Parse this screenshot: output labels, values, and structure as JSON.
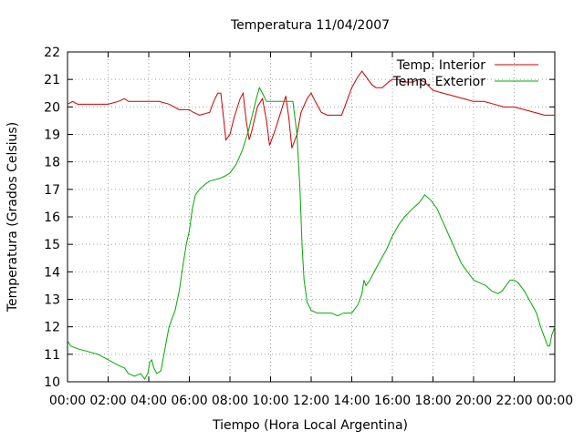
{
  "chart_data": {
    "type": "line",
    "title": "Temperatura 11/04/2007",
    "xlabel": "Tiempo (Hora Local Argentina)",
    "ylabel": "Temperatura (Grados Celsius)",
    "xlim": [
      0,
      24
    ],
    "ylim": [
      10,
      22
    ],
    "x_unit": "hours",
    "x_tick_labels": [
      "00:00",
      "02:00",
      "04:00",
      "06:00",
      "08:00",
      "10:00",
      "12:00",
      "14:00",
      "16:00",
      "18:00",
      "20:00",
      "22:00",
      "00:00"
    ],
    "y_ticks": [
      10,
      11,
      12,
      13,
      14,
      15,
      16,
      17,
      18,
      19,
      20,
      21,
      22
    ],
    "grid": true,
    "legend_position": "top-right",
    "series": [
      {
        "name": "Temp. Interior",
        "color": "#cc0000",
        "points": [
          [
            0.0,
            20.1
          ],
          [
            0.25,
            20.2
          ],
          [
            0.5,
            20.1
          ],
          [
            1.0,
            20.1
          ],
          [
            1.5,
            20.1
          ],
          [
            2.0,
            20.1
          ],
          [
            2.5,
            20.2
          ],
          [
            2.8,
            20.3
          ],
          [
            3.0,
            20.2
          ],
          [
            3.5,
            20.2
          ],
          [
            4.0,
            20.2
          ],
          [
            4.5,
            20.2
          ],
          [
            5.0,
            20.1
          ],
          [
            5.5,
            19.9
          ],
          [
            6.0,
            19.9
          ],
          [
            6.2,
            19.8
          ],
          [
            6.5,
            19.7
          ],
          [
            7.0,
            19.8
          ],
          [
            7.2,
            20.2
          ],
          [
            7.4,
            20.5
          ],
          [
            7.55,
            20.5
          ],
          [
            7.7,
            19.5
          ],
          [
            7.8,
            18.8
          ],
          [
            8.0,
            19.0
          ],
          [
            8.2,
            19.6
          ],
          [
            8.5,
            20.3
          ],
          [
            8.65,
            20.5
          ],
          [
            8.8,
            19.5
          ],
          [
            8.95,
            18.8
          ],
          [
            9.1,
            19.2
          ],
          [
            9.35,
            20.0
          ],
          [
            9.6,
            20.3
          ],
          [
            9.8,
            19.5
          ],
          [
            9.95,
            18.6
          ],
          [
            10.2,
            19.1
          ],
          [
            10.5,
            19.8
          ],
          [
            10.75,
            20.4
          ],
          [
            10.9,
            19.6
          ],
          [
            11.05,
            18.5
          ],
          [
            11.3,
            19.0
          ],
          [
            11.5,
            19.8
          ],
          [
            11.8,
            20.3
          ],
          [
            12.0,
            20.5
          ],
          [
            12.2,
            20.2
          ],
          [
            12.5,
            19.8
          ],
          [
            12.8,
            19.7
          ],
          [
            13.0,
            19.7
          ],
          [
            13.5,
            19.7
          ],
          [
            13.8,
            20.3
          ],
          [
            14.0,
            20.7
          ],
          [
            14.3,
            21.1
          ],
          [
            14.5,
            21.3
          ],
          [
            14.7,
            21.1
          ],
          [
            15.0,
            20.8
          ],
          [
            15.2,
            20.7
          ],
          [
            15.5,
            20.7
          ],
          [
            15.8,
            20.9
          ],
          [
            16.0,
            21.0
          ],
          [
            16.3,
            21.0
          ],
          [
            16.5,
            20.9
          ],
          [
            17.0,
            20.9
          ],
          [
            17.3,
            21.0
          ],
          [
            17.6,
            20.9
          ],
          [
            18.0,
            20.6
          ],
          [
            18.5,
            20.5
          ],
          [
            19.0,
            20.4
          ],
          [
            19.5,
            20.3
          ],
          [
            20.0,
            20.2
          ],
          [
            20.5,
            20.2
          ],
          [
            21.0,
            20.1
          ],
          [
            21.5,
            20.0
          ],
          [
            22.0,
            20.0
          ],
          [
            22.5,
            19.9
          ],
          [
            23.0,
            19.8
          ],
          [
            23.5,
            19.7
          ],
          [
            24.0,
            19.7
          ]
        ]
      },
      {
        "name": "Temp. Exterior",
        "color": "#00aa00",
        "points": [
          [
            0.0,
            11.5
          ],
          [
            0.15,
            11.3
          ],
          [
            0.5,
            11.2
          ],
          [
            1.0,
            11.1
          ],
          [
            1.5,
            11.0
          ],
          [
            2.0,
            10.8
          ],
          [
            2.5,
            10.6
          ],
          [
            2.8,
            10.5
          ],
          [
            3.0,
            10.3
          ],
          [
            3.3,
            10.2
          ],
          [
            3.6,
            10.3
          ],
          [
            3.8,
            10.1
          ],
          [
            3.95,
            10.3
          ],
          [
            4.05,
            10.7
          ],
          [
            4.15,
            10.8
          ],
          [
            4.25,
            10.5
          ],
          [
            4.4,
            10.3
          ],
          [
            4.6,
            10.4
          ],
          [
            4.8,
            11.2
          ],
          [
            5.0,
            12.0
          ],
          [
            5.3,
            12.6
          ],
          [
            5.5,
            13.3
          ],
          [
            5.7,
            14.3
          ],
          [
            5.85,
            15.0
          ],
          [
            6.0,
            15.5
          ],
          [
            6.15,
            16.3
          ],
          [
            6.3,
            16.8
          ],
          [
            6.5,
            17.0
          ],
          [
            6.8,
            17.2
          ],
          [
            7.0,
            17.3
          ],
          [
            7.5,
            17.4
          ],
          [
            7.8,
            17.5
          ],
          [
            8.0,
            17.6
          ],
          [
            8.3,
            17.9
          ],
          [
            8.6,
            18.4
          ],
          [
            8.9,
            19.1
          ],
          [
            9.1,
            19.7
          ],
          [
            9.3,
            20.3
          ],
          [
            9.45,
            20.7
          ],
          [
            9.6,
            20.5
          ],
          [
            9.8,
            20.2
          ],
          [
            10.0,
            20.2
          ],
          [
            10.3,
            20.2
          ],
          [
            10.6,
            20.2
          ],
          [
            10.9,
            20.2
          ],
          [
            11.1,
            20.2
          ],
          [
            11.3,
            19.0
          ],
          [
            11.45,
            17.0
          ],
          [
            11.55,
            15.0
          ],
          [
            11.65,
            13.7
          ],
          [
            11.8,
            12.9
          ],
          [
            12.0,
            12.6
          ],
          [
            12.3,
            12.5
          ],
          [
            12.7,
            12.5
          ],
          [
            13.0,
            12.5
          ],
          [
            13.3,
            12.4
          ],
          [
            13.6,
            12.5
          ],
          [
            14.0,
            12.5
          ],
          [
            14.3,
            12.8
          ],
          [
            14.5,
            13.2
          ],
          [
            14.6,
            13.7
          ],
          [
            14.7,
            13.5
          ],
          [
            14.9,
            13.7
          ],
          [
            15.1,
            14.0
          ],
          [
            15.4,
            14.4
          ],
          [
            15.7,
            14.8
          ],
          [
            16.0,
            15.3
          ],
          [
            16.3,
            15.7
          ],
          [
            16.6,
            16.0
          ],
          [
            17.0,
            16.3
          ],
          [
            17.3,
            16.5
          ],
          [
            17.6,
            16.8
          ],
          [
            17.9,
            16.6
          ],
          [
            18.2,
            16.3
          ],
          [
            18.5,
            15.8
          ],
          [
            18.8,
            15.3
          ],
          [
            19.1,
            14.8
          ],
          [
            19.4,
            14.3
          ],
          [
            19.7,
            14.0
          ],
          [
            20.0,
            13.7
          ],
          [
            20.3,
            13.6
          ],
          [
            20.6,
            13.5
          ],
          [
            20.9,
            13.3
          ],
          [
            21.2,
            13.2
          ],
          [
            21.4,
            13.3
          ],
          [
            21.6,
            13.5
          ],
          [
            21.8,
            13.7
          ],
          [
            22.0,
            13.7
          ],
          [
            22.2,
            13.6
          ],
          [
            22.5,
            13.3
          ],
          [
            22.8,
            12.9
          ],
          [
            23.1,
            12.5
          ],
          [
            23.3,
            12.0
          ],
          [
            23.5,
            11.6
          ],
          [
            23.65,
            11.3
          ],
          [
            23.75,
            11.3
          ],
          [
            23.85,
            11.7
          ],
          [
            24.0,
            12.0
          ]
        ]
      }
    ]
  }
}
